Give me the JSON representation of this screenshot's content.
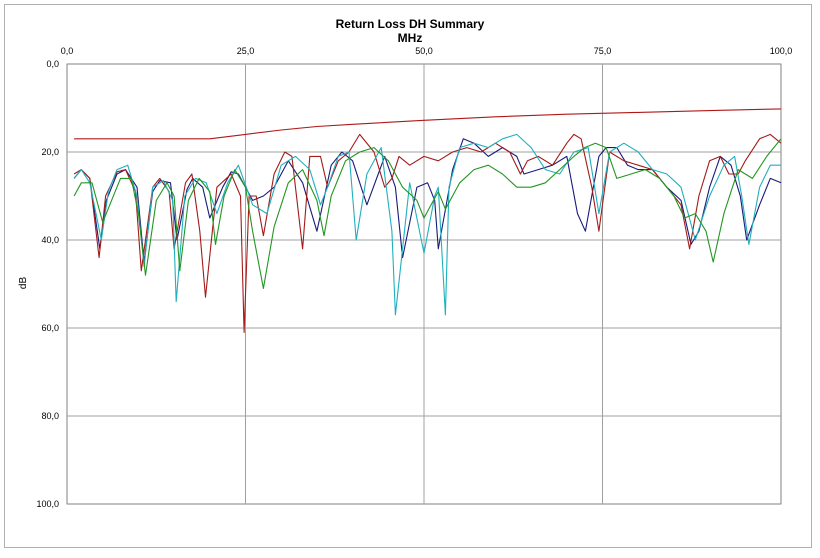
{
  "chart_data": {
    "type": "line",
    "title": "Return Loss DH Summary",
    "xlabel": "MHz",
    "ylabel": "dB",
    "xlim": [
      0,
      100
    ],
    "ylim": [
      0,
      100
    ],
    "y_inverted": true,
    "x_axis_position": "top",
    "grid": true,
    "legend": "none",
    "x_ticks": [
      "0,0",
      "25,0",
      "50,0",
      "75,0",
      "100,0"
    ],
    "y_ticks": [
      "0,0",
      "20,0",
      "40,0",
      "60,0",
      "80,0",
      "100,0"
    ],
    "x_tick_values": [
      0,
      25,
      50,
      75,
      100
    ],
    "y_tick_values": [
      0,
      20,
      40,
      60,
      80,
      100
    ],
    "series": [
      {
        "color": "#b01818",
        "role": "limit",
        "x": [
          1,
          10,
          20,
          25,
          30,
          35,
          40,
          50,
          60,
          70,
          80,
          90,
          100
        ],
        "y": [
          17,
          17,
          17,
          16,
          15,
          14.2,
          13.7,
          12.8,
          12,
          11.4,
          11,
          10.6,
          10.2
        ]
      },
      {
        "color": "#1a1a7a",
        "x": [
          1,
          2,
          3.2,
          4.6,
          5.5,
          7,
          8.2,
          9.8,
          10.8,
          12,
          13,
          14.5,
          15.4,
          16.8,
          17.6,
          19,
          20,
          21.8,
          23,
          24,
          26,
          27.5,
          29,
          31,
          33,
          35,
          37,
          38.5,
          40,
          42,
          44.5,
          46,
          47,
          49,
          50.5,
          51.5,
          52,
          54,
          55.5,
          57,
          59,
          61,
          63,
          64,
          66,
          68,
          70,
          71.5,
          72.6,
          74.5,
          75.5,
          77,
          78.5,
          80,
          82,
          84,
          86,
          87.4,
          88.5,
          90,
          91.5,
          93,
          94.3,
          95.2,
          97,
          98.5,
          100
        ],
        "y": [
          26,
          24,
          26,
          42,
          31,
          25,
          24,
          28,
          45,
          29,
          26.5,
          27,
          40,
          28.5,
          26,
          28,
          35,
          28,
          24.5,
          25,
          31,
          30,
          28,
          22,
          27,
          38,
          23,
          20,
          22,
          32,
          21,
          28,
          44,
          28,
          27,
          31,
          42,
          24,
          17,
          18,
          21,
          19,
          21,
          25,
          24,
          23,
          21,
          34,
          38,
          21,
          19,
          19,
          23,
          24,
          24,
          28,
          31,
          41,
          38,
          28,
          21,
          23,
          30,
          40,
          32,
          26,
          27
        ]
      },
      {
        "color": "#a51a1a",
        "x": [
          1,
          2,
          3.2,
          4.5,
          5.4,
          7,
          8.2,
          9.6,
          10.4,
          12,
          13,
          14.3,
          15,
          16.6,
          17.5,
          18.6,
          19.4,
          21,
          23,
          24.3,
          24.8,
          25.5,
          26.5,
          27.5,
          29,
          30.5,
          31.5,
          33,
          34,
          35.5,
          36.5,
          38,
          39.5,
          41,
          43,
          44.5,
          45.5,
          46.5,
          48,
          50,
          52,
          54,
          56,
          58,
          60,
          62,
          63.5,
          64.5,
          66,
          68,
          70,
          71,
          72,
          73.5,
          74.5,
          76,
          78,
          80,
          82,
          84,
          86,
          87.2,
          88.5,
          90,
          91.5,
          92.7,
          94,
          95,
          97,
          98.5,
          100
        ],
        "y": [
          25,
          24,
          26,
          44,
          30,
          24.5,
          24,
          29,
          47,
          28,
          26,
          29,
          42,
          27,
          25,
          38,
          53,
          28,
          25,
          30,
          61,
          30,
          30,
          39,
          25,
          20,
          21,
          42,
          21,
          21,
          28,
          22,
          20,
          16,
          20,
          28,
          26,
          21,
          23,
          21,
          22,
          20,
          19,
          20,
          18,
          20,
          25,
          22,
          21,
          23,
          18,
          16,
          17,
          28,
          38,
          20,
          22,
          23,
          24,
          28,
          32,
          42,
          30,
          22,
          21,
          25,
          25,
          22,
          17,
          16,
          18
        ]
      },
      {
        "color": "#1fb0bd",
        "x": [
          1,
          2,
          3.2,
          4.8,
          5.8,
          7,
          8.5,
          9.8,
          10.8,
          12,
          13.5,
          14.8,
          15.3,
          16.5,
          18,
          19.5,
          21,
          22.5,
          24,
          26,
          28,
          30,
          32,
          34,
          35.5,
          36.5,
          38,
          39.5,
          40.5,
          42,
          44,
          45.5,
          46,
          48,
          50,
          51.5,
          52,
          53,
          53.5,
          55,
          57,
          59,
          61,
          63,
          65,
          67,
          69,
          71,
          73,
          74.5,
          76,
          78,
          80,
          82,
          84,
          86,
          87,
          88,
          90,
          92,
          93.5,
          94.5,
          95.5,
          97,
          98.5,
          100
        ],
        "y": [
          26,
          24,
          27,
          40,
          29,
          24,
          23,
          30,
          46,
          28,
          26.5,
          31,
          54,
          30,
          26,
          27,
          34,
          27,
          23,
          32,
          34,
          23,
          21,
          24,
          32,
          28,
          21,
          20,
          40,
          25,
          19,
          38,
          57,
          27,
          43,
          30,
          28,
          57,
          28,
          19,
          18,
          19,
          17,
          16,
          19,
          24,
          25,
          20,
          19,
          34,
          20,
          18,
          20,
          24,
          25,
          28,
          34,
          40,
          30,
          23,
          21,
          30,
          41,
          28,
          23,
          23
        ]
      },
      {
        "color": "#229622",
        "x": [
          1,
          2,
          3.5,
          5,
          6,
          7.5,
          9,
          10,
          11,
          12.5,
          14,
          15,
          15.8,
          17,
          18.5,
          20,
          20.8,
          22,
          23.5,
          25,
          26,
          27.5,
          29,
          31,
          33,
          35,
          36,
          37,
          39,
          41,
          43,
          45,
          47,
          49,
          50,
          51,
          52,
          53,
          55,
          57,
          59,
          61,
          63,
          65,
          67,
          69,
          71,
          72.5,
          74,
          75.5,
          77,
          79,
          81,
          83,
          85,
          86.5,
          88,
          89.5,
          90.5,
          92,
          94,
          96,
          98,
          100
        ],
        "y": [
          30,
          27,
          27,
          36,
          32,
          26,
          26,
          34,
          48,
          31,
          27,
          30,
          47,
          31,
          26,
          29,
          41,
          30,
          24,
          28,
          38,
          51,
          37,
          27,
          24,
          31,
          39,
          30,
          22,
          20,
          19,
          22,
          28,
          31,
          35,
          32,
          29,
          33,
          27,
          24,
          23,
          25,
          28,
          28,
          27,
          24,
          21,
          19,
          18,
          19,
          26,
          25,
          24,
          26,
          30,
          35,
          34,
          38,
          45,
          34,
          24,
          26,
          21,
          17
        ]
      }
    ]
  }
}
